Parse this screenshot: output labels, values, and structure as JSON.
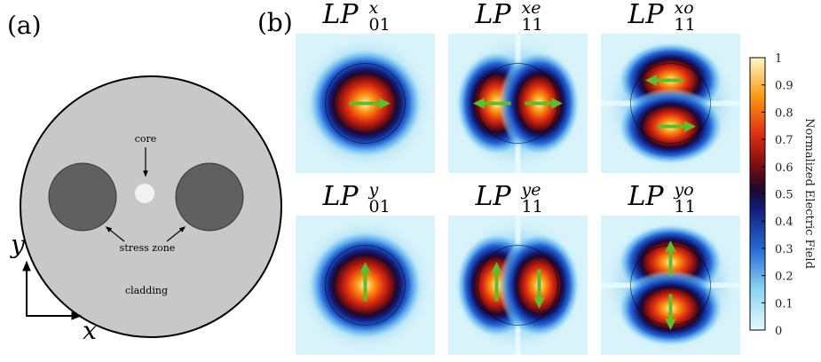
{
  "panel_a": {
    "label": "(a)",
    "core": "core",
    "stress_zone": "stress zone",
    "cladding": "cladding",
    "axis_y": "y",
    "axis_x": "x"
  },
  "panel_b": {
    "label": "(b)",
    "modes": [
      {
        "base": "LP",
        "sup": "x",
        "sub": "01"
      },
      {
        "base": "LP",
        "sup": "xe",
        "sub": "11"
      },
      {
        "base": "LP",
        "sup": "xo",
        "sub": "11"
      },
      {
        "base": "LP",
        "sup": "y",
        "sub": "01"
      },
      {
        "base": "LP",
        "sup": "ye",
        "sub": "11"
      },
      {
        "base": "LP",
        "sup": "yo",
        "sub": "11"
      }
    ],
    "colorbar": {
      "label": "Normalized Electric Field",
      "ticks": [
        0,
        0.1,
        0.2,
        0.3,
        0.4,
        0.5,
        0.6,
        0.7,
        0.8,
        0.9,
        1
      ]
    }
  }
}
